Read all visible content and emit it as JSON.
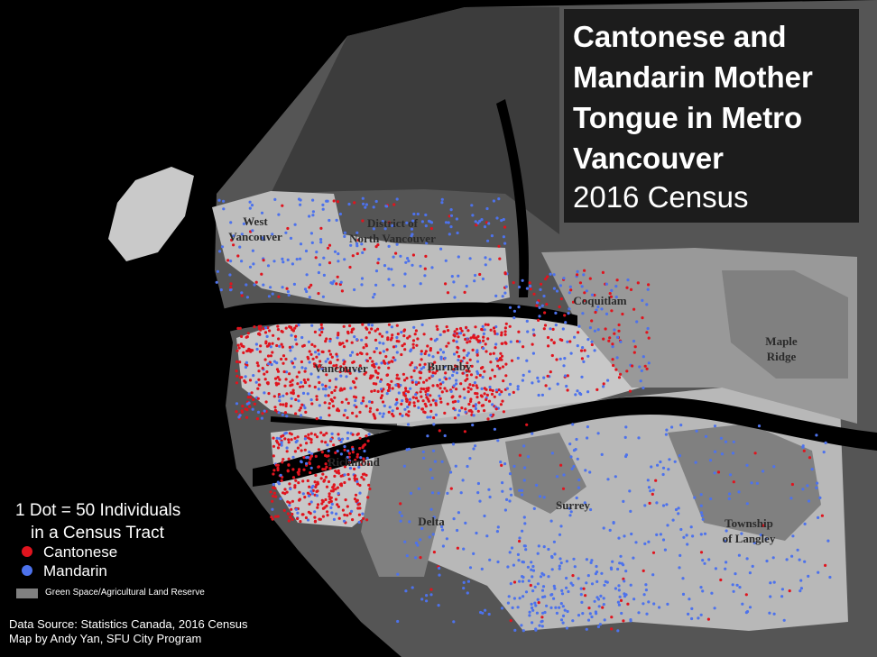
{
  "title": {
    "lines": [
      "Cantonese and",
      "Mandarin Mother",
      "Tongue in Metro",
      "Vancouver"
    ],
    "subtitle": "2016 Census"
  },
  "places": [
    {
      "lines": [
        "West",
        "Vancouver"
      ]
    },
    {
      "lines": [
        "District of",
        "North Vancouver"
      ]
    },
    {
      "lines": [
        "Coquitlam"
      ]
    },
    {
      "lines": [
        "Maple",
        "Ridge"
      ]
    },
    {
      "lines": [
        "Vancouver"
      ]
    },
    {
      "lines": [
        "Burnaby"
      ]
    },
    {
      "lines": [
        "Richmond"
      ]
    },
    {
      "lines": [
        "Delta"
      ]
    },
    {
      "lines": [
        "Surrey"
      ]
    },
    {
      "lines": [
        "Township",
        "of Langley"
      ]
    }
  ],
  "legend": {
    "title_lines": [
      "1 Dot = 50 Individuals",
      "in a Census Tract"
    ],
    "items": [
      {
        "label": "Cantonese",
        "color": "#e0141e"
      },
      {
        "label": "Mandarin",
        "color": "#4d72ec"
      },
      {
        "label": "Green Space/Agricultural Land Reserve",
        "color": "#808080"
      }
    ]
  },
  "source": [
    "Data Source: Statistics Canada, 2016 Census",
    "Map by Andy Yan, SFU City Program"
  ]
}
